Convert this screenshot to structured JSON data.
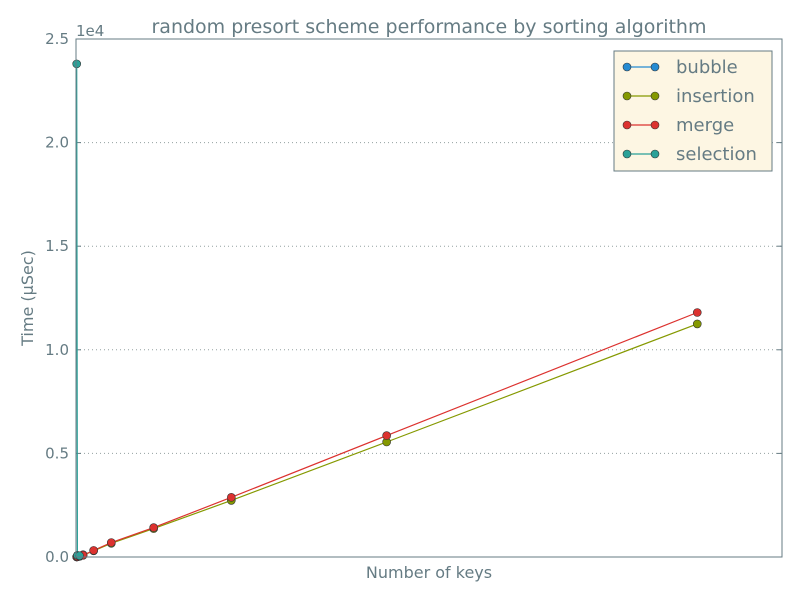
{
  "chart_data": {
    "type": "line",
    "title": "random presort scheme performance by sorting algorithm",
    "xlabel": "Number of keys",
    "ylabel": "Time (μSec)",
    "y_multiplier_label": "1e4",
    "xlim": [
      0,
      10000
    ],
    "ylim": [
      0,
      25000
    ],
    "y_ticks": [
      0,
      5000,
      10000,
      15000,
      20000,
      25000
    ],
    "y_tick_labels": [
      "0.0",
      "0.5",
      "1.0",
      "1.5",
      "2.0",
      "2.5"
    ],
    "x_tick_labels_visible": false,
    "grid": "horizontal-dotted",
    "legend_position": "top-right",
    "series": [
      {
        "name": "bubble",
        "color": "#268bd2",
        "x": [
          10,
          20,
          50,
          100
        ],
        "y": [
          3,
          8,
          35,
          110
        ]
      },
      {
        "name": "insertion",
        "color": "#859900",
        "x": [
          10,
          20,
          50,
          100,
          250,
          500,
          1100,
          2200,
          4400,
          8800
        ],
        "y": [
          5,
          15,
          40,
          80,
          300,
          660,
          1370,
          2730,
          5550,
          11250
        ]
      },
      {
        "name": "merge",
        "color": "#dc322f",
        "x": [
          10,
          20,
          50,
          100,
          250,
          500,
          1100,
          2200,
          4400,
          8800
        ],
        "y": [
          5,
          15,
          40,
          90,
          320,
          700,
          1420,
          2880,
          5860,
          11800
        ]
      },
      {
        "name": "selection",
        "color": "#2aa198",
        "x": [
          10,
          20,
          50
        ],
        "y": [
          23800,
          80,
          60
        ]
      }
    ]
  }
}
